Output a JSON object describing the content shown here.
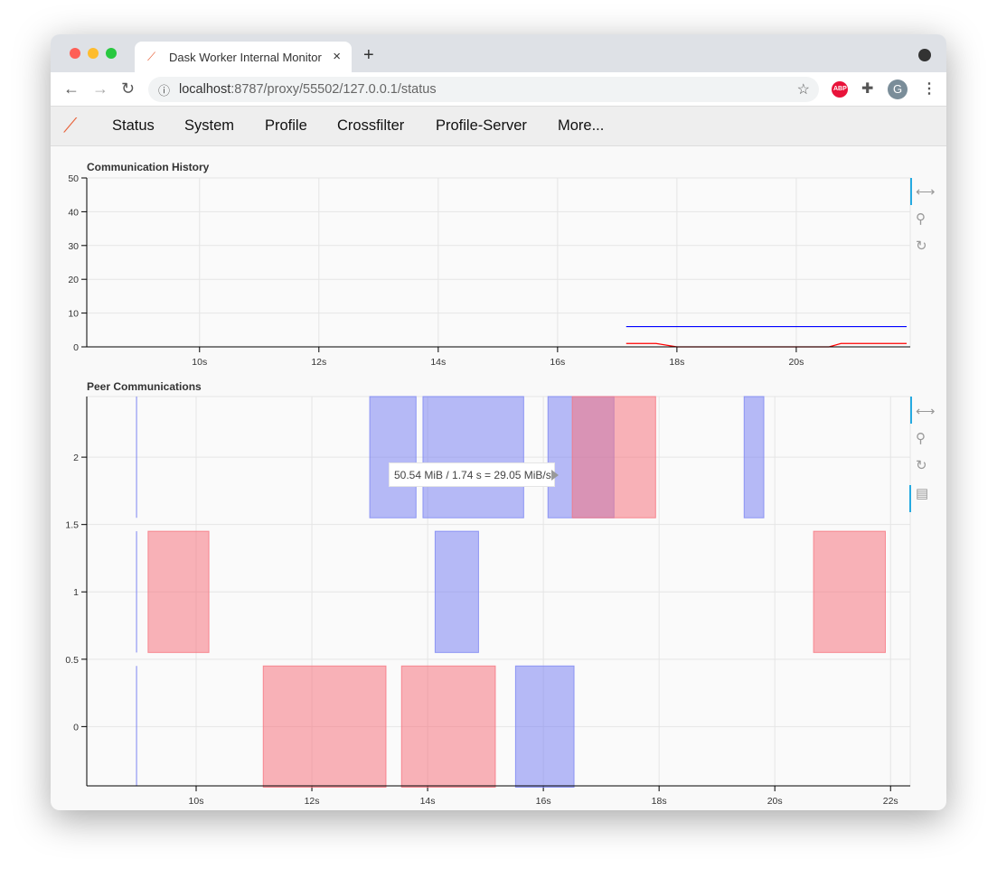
{
  "browser": {
    "tab_title": "Dask Worker Internal Monitor",
    "url_host": "localhost",
    "url_rest": ":8787/proxy/55502/127.0.0.1/status",
    "profile_initial": "G",
    "abp": "ABP"
  },
  "nav": {
    "items": [
      "Status",
      "System",
      "Profile",
      "Crossfilter",
      "Profile-Server",
      "More..."
    ]
  },
  "colors": {
    "blue": "#0000ff",
    "red": "#ff0000",
    "send": "#f67480",
    "recv": "#7b84f2"
  },
  "tooltip": "50.54 MiB / 1.74 s = 29.05 MiB/s",
  "chart_data": [
    {
      "type": "line",
      "title": "Communication History",
      "xlim": [
        8.11,
        21.91
      ],
      "ylim": [
        0,
        50
      ],
      "xticks": [
        10,
        12,
        14,
        16,
        18,
        20
      ],
      "xtick_labels": [
        "10s",
        "12s",
        "14s",
        "16s",
        "18s",
        "20s"
      ],
      "yticks": [
        0,
        10,
        20,
        30,
        40,
        50
      ],
      "ytick_labels": [
        "0",
        "10",
        "20",
        "30",
        "40",
        "50"
      ],
      "series": [
        {
          "name": "blue",
          "x": [
            17.15,
            21.85
          ],
          "y": [
            6,
            6
          ]
        },
        {
          "name": "red",
          "x": [
            17.15,
            17.65,
            18,
            20.55,
            20.75,
            21.85
          ],
          "y": [
            1,
            1,
            0,
            0,
            1,
            1
          ]
        }
      ]
    },
    {
      "type": "rect",
      "title": "Peer Communications",
      "xlim": [
        8.11,
        22.34
      ],
      "ylim": [
        -0.44,
        2.45
      ],
      "xticks": [
        10,
        12,
        14,
        16,
        18,
        20,
        22
      ],
      "xtick_labels": [
        "10s",
        "12s",
        "14s",
        "16s",
        "18s",
        "20s",
        "22s"
      ],
      "yticks": [
        0,
        0.5,
        1,
        1.5,
        2
      ],
      "ytick_labels": [
        "0",
        "0.5",
        "1",
        "1.5",
        "2"
      ],
      "rects": [
        {
          "kind": "recv",
          "row": 2,
          "x0": 13.0,
          "x1": 13.8
        },
        {
          "kind": "recv",
          "row": 2,
          "x0": 13.92,
          "x1": 15.66
        },
        {
          "kind": "recv",
          "row": 2,
          "x0": 16.08,
          "x1": 17.22
        },
        {
          "kind": "send",
          "row": 2,
          "x0": 16.5,
          "x1": 17.94
        },
        {
          "kind": "recv",
          "row": 2,
          "x0": 19.47,
          "x1": 19.81
        },
        {
          "kind": "send",
          "row": 1,
          "x0": 9.17,
          "x1": 10.22
        },
        {
          "kind": "recv",
          "row": 1,
          "x0": 14.13,
          "x1": 14.88
        },
        {
          "kind": "send",
          "row": 1,
          "x0": 20.67,
          "x1": 21.91
        },
        {
          "kind": "send",
          "row": 0,
          "x0": 11.16,
          "x1": 13.28
        },
        {
          "kind": "send",
          "row": 0,
          "x0": 13.55,
          "x1": 15.17
        },
        {
          "kind": "recv",
          "row": 0,
          "x0": 15.52,
          "x1": 16.53
        }
      ]
    }
  ]
}
